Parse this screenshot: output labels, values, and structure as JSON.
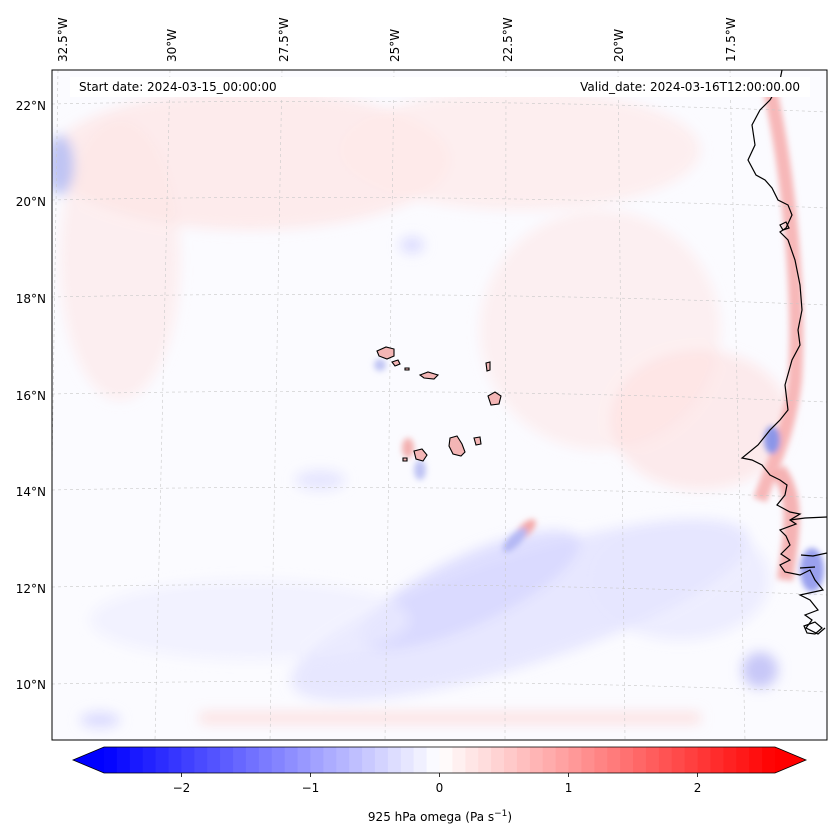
{
  "map": {
    "start_date_label": "Start date: 2024-03-15_00:00:00",
    "valid_date_label": "Valid_date: 2024-03-16T12:00:00.00",
    "lon_labels": [
      "32.5°W",
      "30°W",
      "27.5°W",
      "25°W",
      "22.5°W",
      "20°W",
      "17.5°W"
    ],
    "lat_labels": [
      "22°N",
      "20°N",
      "18°N",
      "16°N",
      "14°N",
      "12°N",
      "10°N"
    ],
    "colorbar": {
      "ticks": [
        "−2",
        "−1",
        "0",
        "1",
        "2"
      ],
      "label": "925 hPa omega (Pa s",
      "label_sup": "−1",
      "label_close": ")",
      "vmin": -2.6,
      "vmax": 2.6,
      "colormap": "bwr",
      "min_color": "#0000ff",
      "mid_color": "#ffffff",
      "max_color": "#ff0000"
    },
    "colors": {
      "coastline": "#000000",
      "gridline": "#c8c8c8"
    }
  }
}
